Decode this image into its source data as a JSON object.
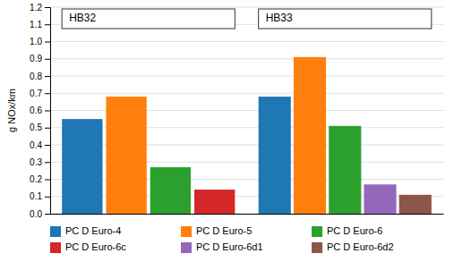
{
  "chart_data": {
    "type": "bar",
    "categories": [
      "HB32",
      "HB33"
    ],
    "series": [
      {
        "name": "PC D Euro-4",
        "values": [
          0.55,
          0.68
        ]
      },
      {
        "name": "PC D Euro-5",
        "values": [
          0.68,
          0.91
        ]
      },
      {
        "name": "PC D Euro-6",
        "values": [
          0.27,
          0.51
        ]
      },
      {
        "name": "PC D Euro-6c",
        "values": [
          0.14,
          null
        ]
      },
      {
        "name": "PC D Euro-6d1",
        "values": [
          null,
          0.17
        ]
      },
      {
        "name": "PC D Euro-6d2",
        "values": [
          null,
          0.11
        ]
      }
    ],
    "ylabel": "g NOx/km",
    "ylim": [
      0,
      1.2
    ],
    "yticks": [
      {
        "value": 0,
        "label": "0.0"
      },
      0.1,
      0.2,
      0.3,
      0.4,
      0.5,
      0.6,
      0.7,
      0.8,
      0.9,
      {
        "value": 1,
        "label": "1.0"
      },
      1.1,
      1.2
    ],
    "grid": true,
    "legend": "bottom"
  }
}
